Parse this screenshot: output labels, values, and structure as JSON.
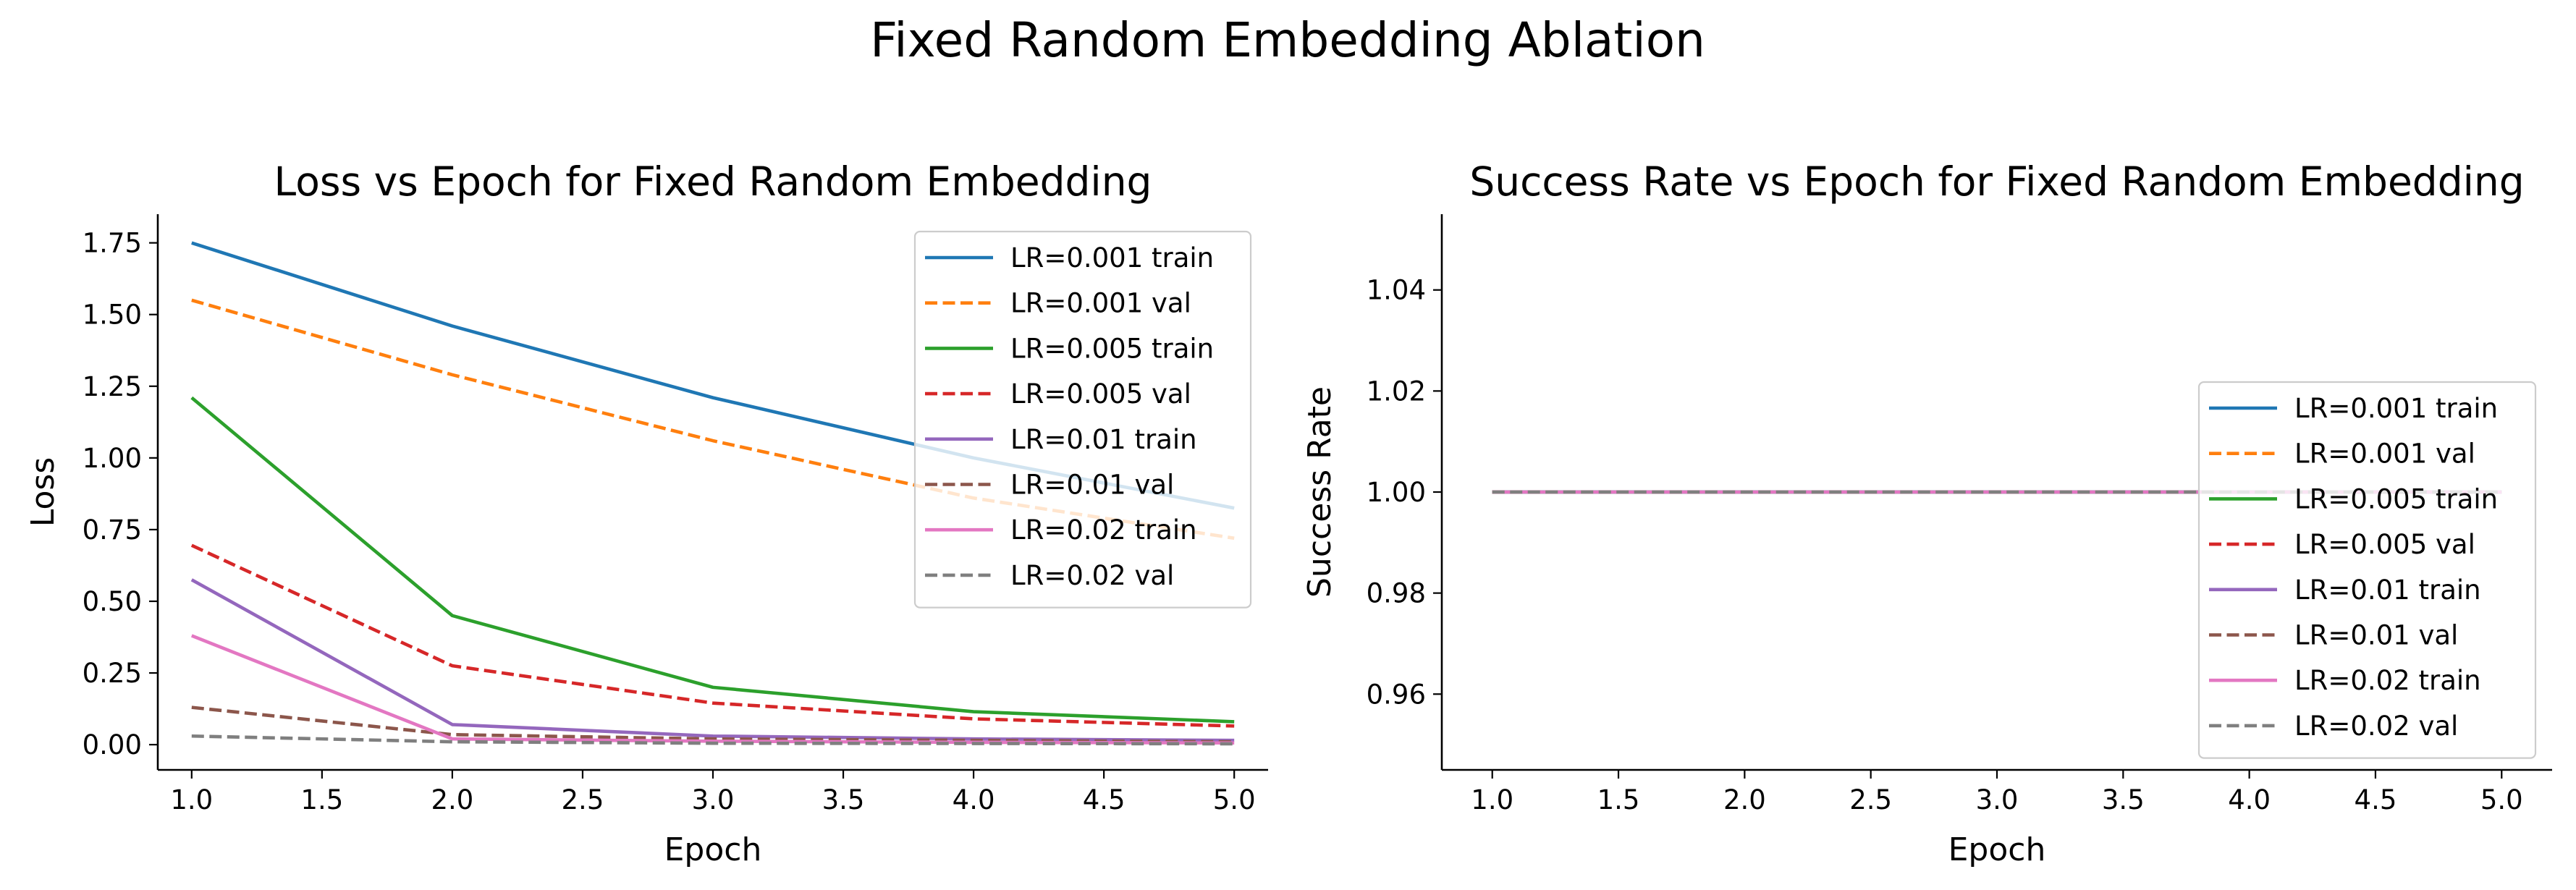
{
  "figure": {
    "suptitle": "Fixed Random Embedding Ablation"
  },
  "chart_data": [
    {
      "type": "line",
      "title": "Loss vs Epoch for Fixed Random Embedding",
      "xlabel": "Epoch",
      "ylabel": "Loss",
      "xlim": [
        0.87,
        5.13
      ],
      "ylim": [
        -0.088,
        1.85
      ],
      "xticks": [
        1.0,
        1.5,
        2.0,
        2.5,
        3.0,
        3.5,
        4.0,
        4.5,
        5.0
      ],
      "xtick_labels": [
        "1.0",
        "1.5",
        "2.0",
        "2.5",
        "3.0",
        "3.5",
        "4.0",
        "4.5",
        "5.0"
      ],
      "yticks": [
        0.0,
        0.25,
        0.5,
        0.75,
        1.0,
        1.25,
        1.5,
        1.75
      ],
      "ytick_labels": [
        "0.00",
        "0.25",
        "0.50",
        "0.75",
        "1.00",
        "1.25",
        "1.50",
        "1.75"
      ],
      "grid": false,
      "legend_position": "top-right",
      "x": [
        1,
        2,
        3,
        4,
        5
      ],
      "series": [
        {
          "name": "LR=0.001 train",
          "color": "#1f77b4",
          "dash": "solid",
          "values": [
            1.75,
            1.46,
            1.21,
            1.0,
            0.825
          ]
        },
        {
          "name": "LR=0.001 val",
          "color": "#ff7f0e",
          "dash": "dashed",
          "values": [
            1.55,
            1.29,
            1.06,
            0.86,
            0.72
          ]
        },
        {
          "name": "LR=0.005 train",
          "color": "#2ca02c",
          "dash": "solid",
          "values": [
            1.21,
            0.45,
            0.2,
            0.115,
            0.08
          ]
        },
        {
          "name": "LR=0.005 val",
          "color": "#d62728",
          "dash": "dashed",
          "values": [
            0.695,
            0.275,
            0.145,
            0.09,
            0.065
          ]
        },
        {
          "name": "LR=0.01 train",
          "color": "#9467bd",
          "dash": "solid",
          "values": [
            0.575,
            0.07,
            0.03,
            0.02,
            0.015
          ]
        },
        {
          "name": "LR=0.01 val",
          "color": "#8c564b",
          "dash": "dashed",
          "values": [
            0.13,
            0.035,
            0.02,
            0.015,
            0.01
          ]
        },
        {
          "name": "LR=0.02 train",
          "color": "#e377c2",
          "dash": "solid",
          "values": [
            0.38,
            0.02,
            0.012,
            0.008,
            0.006
          ]
        },
        {
          "name": "LR=0.02 val",
          "color": "#7f7f7f",
          "dash": "dashed",
          "values": [
            0.03,
            0.01,
            0.005,
            0.004,
            0.003
          ]
        }
      ]
    },
    {
      "type": "line",
      "title": "Success Rate vs Epoch for Fixed Random Embedding",
      "xlabel": "Epoch",
      "ylabel": "Success Rate",
      "xlim": [
        0.8,
        5.2
      ],
      "ylim": [
        0.945,
        1.055
      ],
      "xticks": [
        1.0,
        1.5,
        2.0,
        2.5,
        3.0,
        3.5,
        4.0,
        4.5,
        5.0
      ],
      "xtick_labels": [
        "1.0",
        "1.5",
        "2.0",
        "2.5",
        "3.0",
        "3.5",
        "4.0",
        "4.5",
        "5.0"
      ],
      "yticks": [
        0.96,
        0.98,
        1.0,
        1.02,
        1.04
      ],
      "ytick_labels": [
        "0.96",
        "0.98",
        "1.00",
        "1.02",
        "1.04"
      ],
      "grid": false,
      "legend_position": "center-right",
      "x": [
        1,
        2,
        3,
        4,
        5
      ],
      "series": [
        {
          "name": "LR=0.001 train",
          "color": "#1f77b4",
          "dash": "solid",
          "values": [
            1.0,
            1.0,
            1.0,
            1.0,
            1.0
          ]
        },
        {
          "name": "LR=0.001 val",
          "color": "#ff7f0e",
          "dash": "dashed",
          "values": [
            1.0,
            1.0,
            1.0,
            1.0,
            1.0
          ]
        },
        {
          "name": "LR=0.005 train",
          "color": "#2ca02c",
          "dash": "solid",
          "values": [
            1.0,
            1.0,
            1.0,
            1.0,
            1.0
          ]
        },
        {
          "name": "LR=0.005 val",
          "color": "#d62728",
          "dash": "dashed",
          "values": [
            1.0,
            1.0,
            1.0,
            1.0,
            1.0
          ]
        },
        {
          "name": "LR=0.01 train",
          "color": "#9467bd",
          "dash": "solid",
          "values": [
            1.0,
            1.0,
            1.0,
            1.0,
            1.0
          ]
        },
        {
          "name": "LR=0.01 val",
          "color": "#8c564b",
          "dash": "dashed",
          "values": [
            1.0,
            1.0,
            1.0,
            1.0,
            1.0
          ]
        },
        {
          "name": "LR=0.02 train",
          "color": "#e377c2",
          "dash": "solid",
          "values": [
            1.0,
            1.0,
            1.0,
            1.0,
            1.0
          ]
        },
        {
          "name": "LR=0.02 val",
          "color": "#7f7f7f",
          "dash": "dashed",
          "values": [
            1.0,
            1.0,
            1.0,
            1.0,
            1.0
          ]
        }
      ]
    }
  ]
}
